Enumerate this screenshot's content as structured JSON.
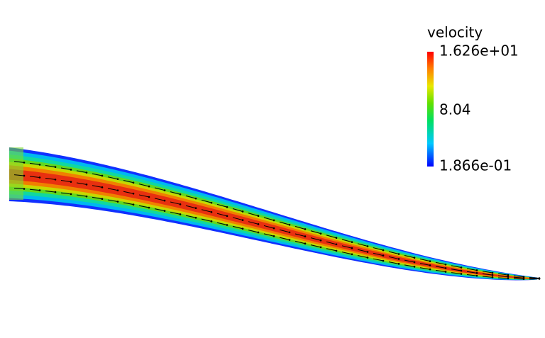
{
  "legend": {
    "title": "velocity",
    "labels": [
      "1.626e+01",
      "8.04",
      "1.866e-01"
    ]
  }
}
